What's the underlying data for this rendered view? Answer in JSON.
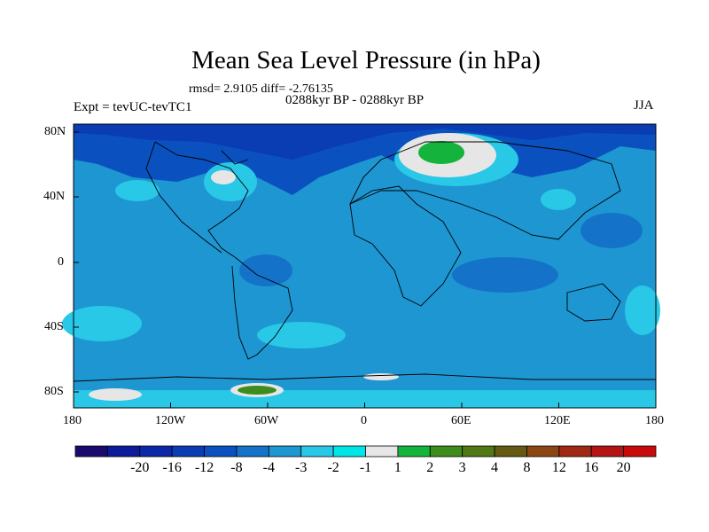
{
  "title": "Mean Sea Level Pressure (in hPa)",
  "stats": "rmsd= 2.9105 diff= -2.76135",
  "period": "0288kyr BP - 0288kyr BP",
  "experiment": "Expt = tevUC-tevTC1",
  "season": "JJA",
  "lat_labels": [
    "80N",
    "40N",
    "0",
    "40S",
    "80S"
  ],
  "lon_labels": [
    "180",
    "120W",
    "60W",
    "0",
    "60E",
    "120E",
    "180"
  ],
  "colorbar": {
    "labels": [
      "-20",
      "-16",
      "-12",
      "-8",
      "-4",
      "-3",
      "-2",
      "-1",
      "1",
      "2",
      "3",
      "4",
      "8",
      "12",
      "16",
      "20"
    ],
    "colors": [
      "#1a0a6e",
      "#0d1a9a",
      "#0a28a8",
      "#0a3cb4",
      "#0a50be",
      "#1473c8",
      "#1e96d2",
      "#28c8e6",
      "#00e6e6",
      "#e6e6e6",
      "#14b43c",
      "#3c8c1e",
      "#507814",
      "#645a14",
      "#8c4614",
      "#a02814",
      "#b41414",
      "#c80a0a"
    ]
  },
  "colors": {
    "ocean_base": "#1e96d2",
    "land_outline": "#000000"
  }
}
